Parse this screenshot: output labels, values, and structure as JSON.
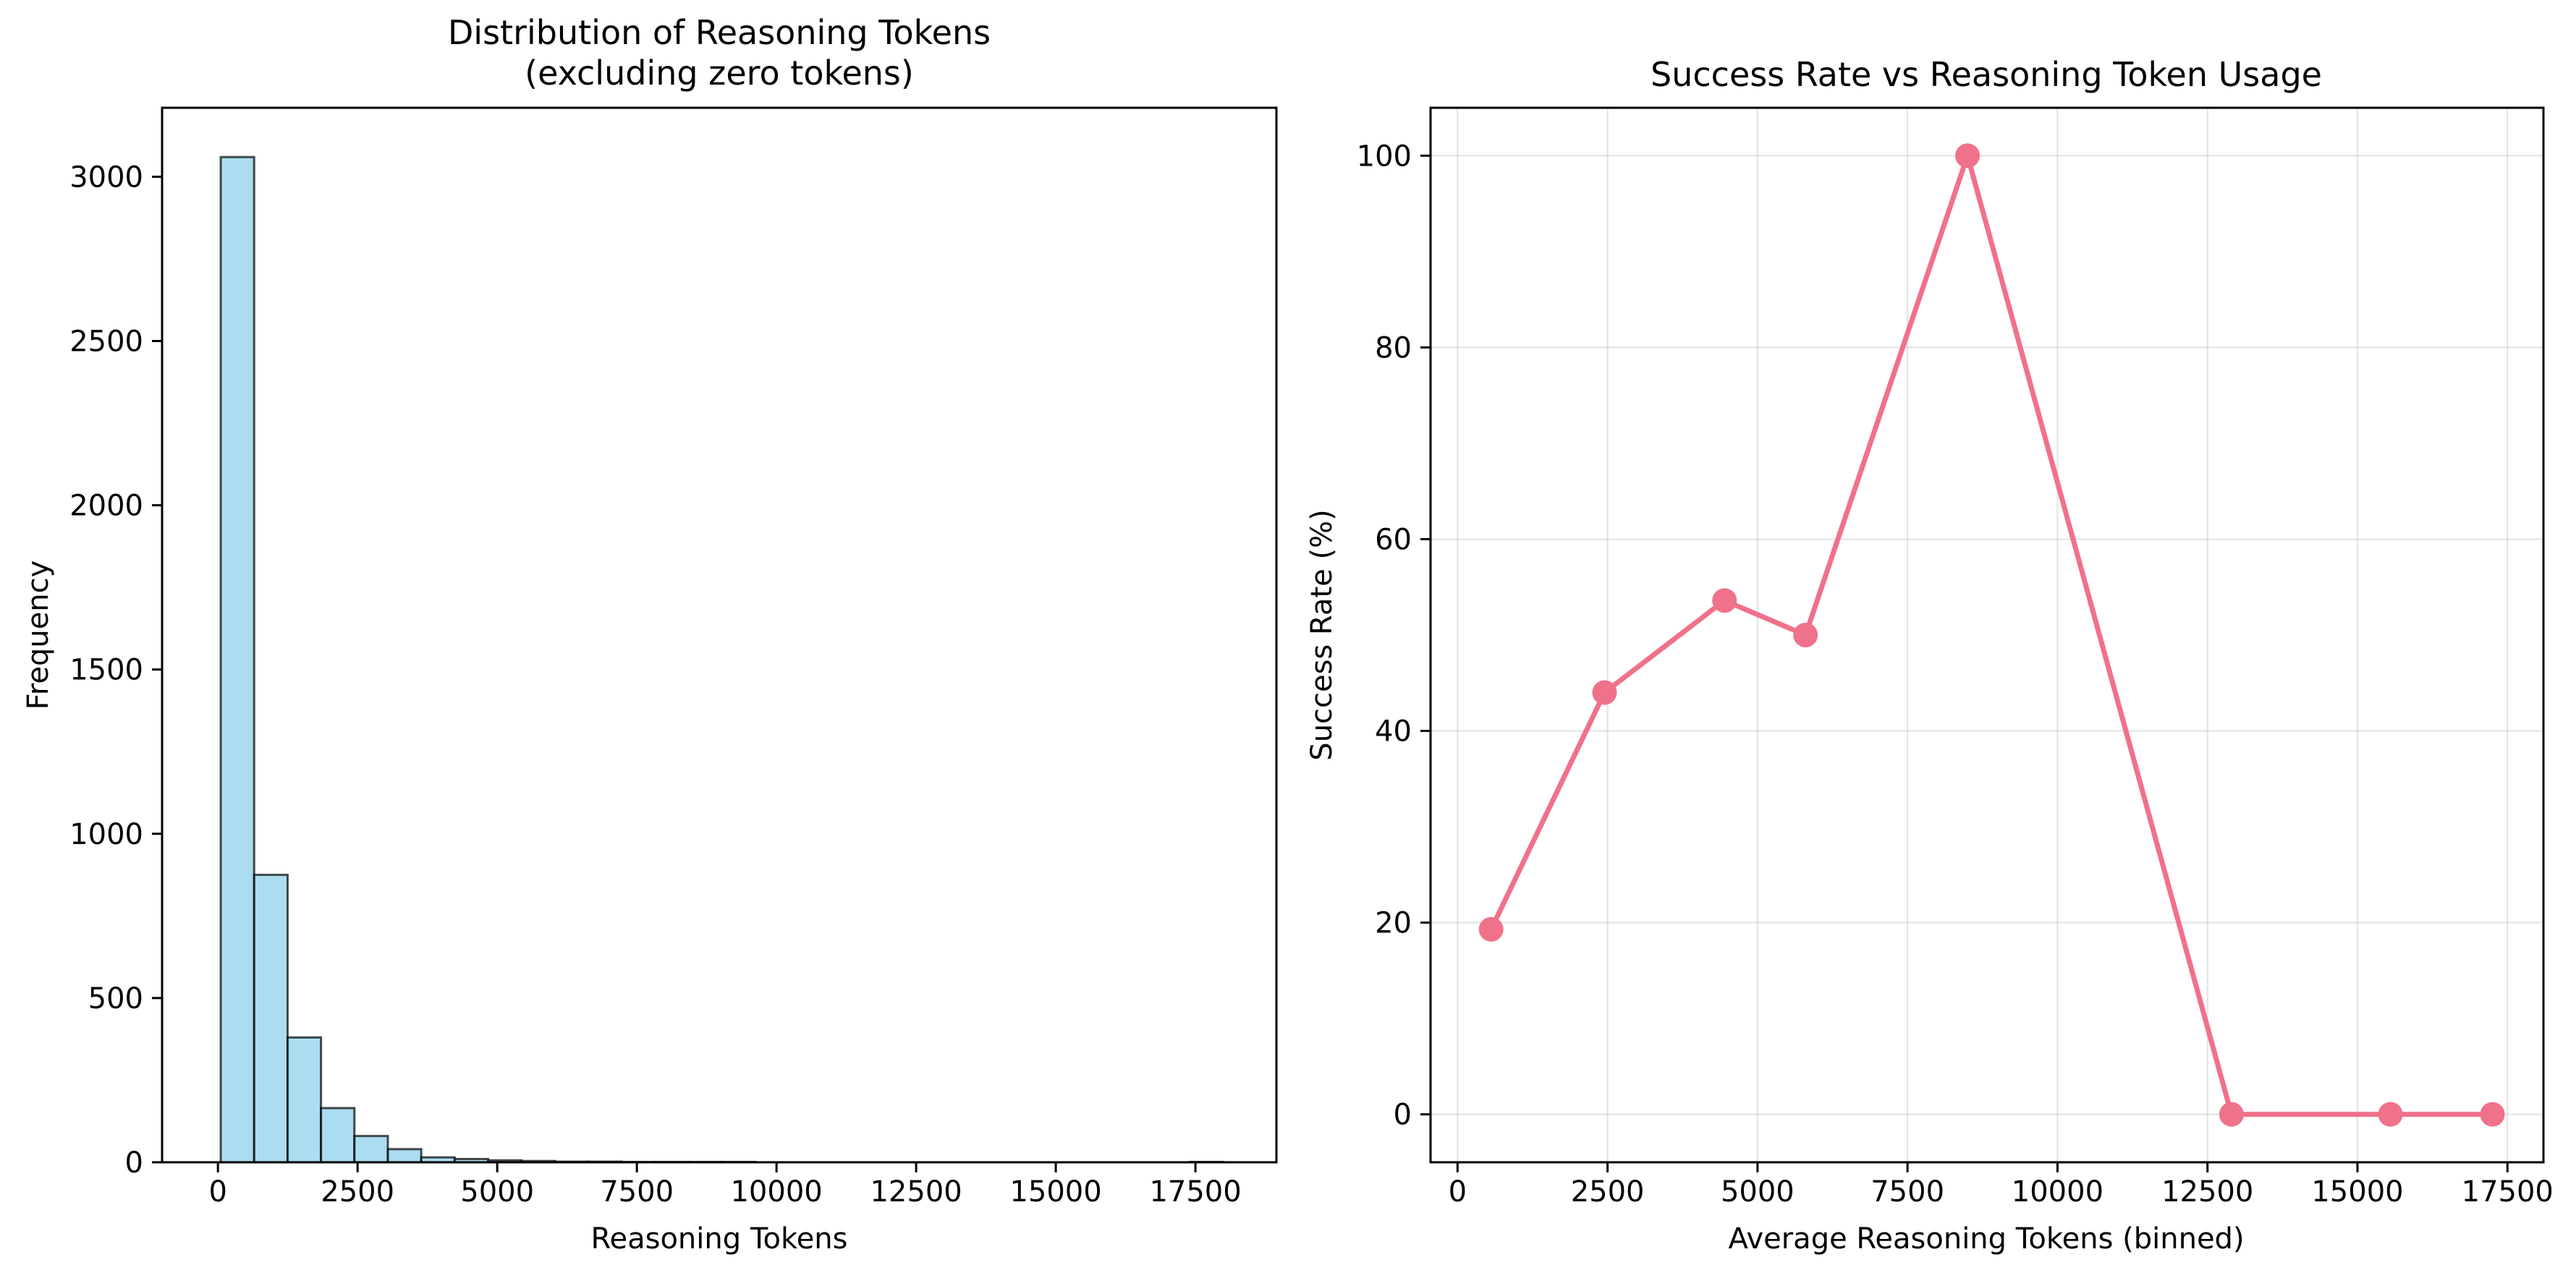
{
  "chart_data": [
    {
      "type": "bar",
      "title_line1": "Distribution of Reasoning Tokens",
      "title_line2": "(excluding zero tokens)",
      "xlabel": "Reasoning Tokens",
      "ylabel": "Frequency",
      "xlim": [
        -1000,
        18950
      ],
      "ylim": [
        0,
        3210
      ],
      "xticks": [
        "0",
        "2500",
        "5000",
        "7500",
        "10000",
        "12500",
        "15000",
        "17500"
      ],
      "xtick_values": [
        0,
        2500,
        5000,
        7500,
        10000,
        12500,
        15000,
        17500
      ],
      "yticks": [
        "0",
        "500",
        "1000",
        "1500",
        "2000",
        "2500",
        "3000"
      ],
      "ytick_values": [
        0,
        500,
        1000,
        1500,
        2000,
        2500,
        3000
      ],
      "bin_edges": [
        50,
        648,
        1247,
        1845,
        2443,
        3042,
        3640,
        4238,
        4837,
        5435,
        6033,
        6632,
        7230,
        7828,
        8427,
        9025,
        9623,
        10222,
        10820,
        11418,
        12017,
        12615,
        13213,
        13812,
        14410,
        15008,
        15607,
        16205,
        16803,
        17402,
        18000
      ],
      "values": [
        3060,
        875,
        380,
        165,
        80,
        40,
        15,
        10,
        6,
        4,
        2,
        2,
        1,
        1,
        1,
        1,
        0,
        0,
        0,
        0,
        0,
        0,
        0,
        0,
        0,
        0,
        0,
        0,
        0,
        1
      ],
      "grid": false,
      "colors": {
        "fill": "#87CEEB",
        "fill_opacity": 0.7,
        "edge": "#000000"
      }
    },
    {
      "type": "line",
      "title": "Success Rate vs Reasoning Token Usage",
      "xlabel": "Average Reasoning Tokens (binned)",
      "ylabel": "Success Rate (%)",
      "xlim": [
        -450,
        18100
      ],
      "ylim": [
        -5,
        105
      ],
      "xticks": [
        "0",
        "2500",
        "5000",
        "7500",
        "10000",
        "12500",
        "15000",
        "17500"
      ],
      "xtick_values": [
        0,
        2500,
        5000,
        7500,
        10000,
        12500,
        15000,
        17500
      ],
      "yticks": [
        "0",
        "20",
        "40",
        "60",
        "80",
        "100"
      ],
      "ytick_values": [
        0,
        20,
        40,
        60,
        80,
        100
      ],
      "x": [
        560,
        2450,
        4450,
        5800,
        8500,
        12900,
        15550,
        17250
      ],
      "y": [
        19.3,
        44.0,
        53.6,
        50.0,
        100.0,
        0.0,
        0.0,
        0.0
      ],
      "grid": true,
      "colors": {
        "line": "#F0718A",
        "grid": "#b0b0b0"
      }
    }
  ]
}
